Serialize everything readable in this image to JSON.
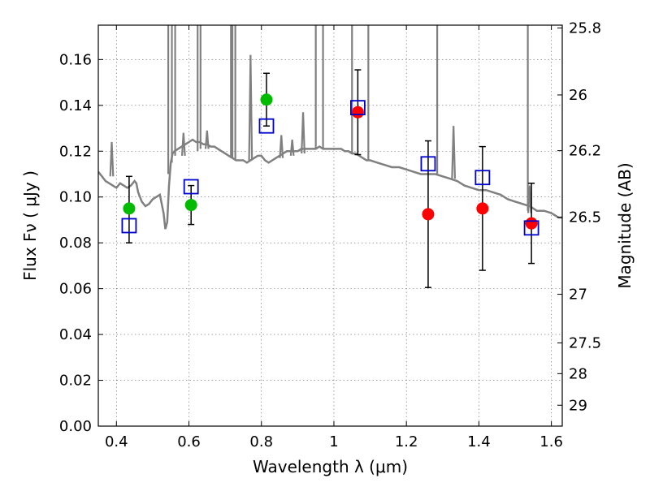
{
  "chart_data": {
    "type": "scatter",
    "title": "",
    "xlabel": "Wavelength  λ (μm)",
    "ylabel": "Flux  Fν  ( μJy )",
    "ylabel_right": "Magnitude (AB)",
    "xlim": [
      0.35,
      1.63
    ],
    "ylim": [
      0.0,
      0.175
    ],
    "grid": true,
    "x_ticks": [
      0.4,
      0.6,
      0.8,
      1.0,
      1.2,
      1.4,
      1.6
    ],
    "x_tick_labels": [
      "0.4",
      "0.6",
      "0.8",
      "1",
      "1.2",
      "1.4",
      "1.6"
    ],
    "y_ticks": [
      0.0,
      0.02,
      0.04,
      0.06,
      0.08,
      0.1,
      0.12,
      0.14,
      0.16
    ],
    "y_tick_labels": [
      "0.00",
      "0.02",
      "0.04",
      "0.06",
      "0.08",
      "0.10",
      "0.12",
      "0.14",
      "0.16"
    ],
    "right_ticks": [
      {
        "label": "25.8",
        "mag": 25.8
      },
      {
        "label": "26",
        "mag": 26.0
      },
      {
        "label": "26.2",
        "mag": 26.2
      },
      {
        "label": "26.5",
        "mag": 26.5
      },
      {
        "label": "27",
        "mag": 27.0
      },
      {
        "label": "27.5",
        "mag": 27.5
      },
      {
        "label": "28",
        "mag": 28.0
      },
      {
        "label": "29",
        "mag": 29.0
      }
    ],
    "colors": {
      "spectrum": "#808080",
      "green_points": "#00bb00",
      "red_points": "#ff0000",
      "model_squares": "#0000cc",
      "errorbar": "#000000"
    },
    "series": [
      {
        "marker": "circle",
        "color": "#00bb00",
        "points": [
          {
            "x": 0.435,
            "y": 0.095,
            "err_lo": 0.015,
            "err_hi": 0.014
          },
          {
            "x": 0.606,
            "y": 0.0965,
            "err_lo": 0.0085,
            "err_hi": 0.0085
          },
          {
            "x": 0.814,
            "y": 0.1425,
            "err_lo": 0.0115,
            "err_hi": 0.0115
          }
        ]
      },
      {
        "marker": "circle",
        "color": "#ff0000",
        "points": [
          {
            "x": 1.066,
            "y": 0.137,
            "err_lo": 0.0185,
            "err_hi": 0.0185
          },
          {
            "x": 1.26,
            "y": 0.0925,
            "err_lo": 0.032,
            "err_hi": 0.032
          },
          {
            "x": 1.41,
            "y": 0.095,
            "err_lo": 0.027,
            "err_hi": 0.027
          },
          {
            "x": 1.545,
            "y": 0.0885,
            "err_lo": 0.0175,
            "err_hi": 0.0175
          }
        ]
      },
      {
        "marker": "square-open",
        "color": "#0000cc",
        "points": [
          {
            "x": 0.435,
            "y": 0.0875
          },
          {
            "x": 0.606,
            "y": 0.1045
          },
          {
            "x": 0.814,
            "y": 0.131
          },
          {
            "x": 1.066,
            "y": 0.139
          },
          {
            "x": 1.26,
            "y": 0.1145
          },
          {
            "x": 1.41,
            "y": 0.1085
          },
          {
            "x": 1.545,
            "y": 0.0865
          }
        ]
      },
      {
        "type": "line",
        "color": "#808080",
        "x": [
          0.35,
          0.36,
          0.37,
          0.38,
          0.39,
          0.4,
          0.405,
          0.41,
          0.42,
          0.43,
          0.44,
          0.45,
          0.455,
          0.46,
          0.47,
          0.48,
          0.49,
          0.5,
          0.51,
          0.52,
          0.53,
          0.535,
          0.54,
          0.545,
          0.55,
          0.555,
          0.56,
          0.57,
          0.58,
          0.59,
          0.6,
          0.61,
          0.62,
          0.63,
          0.64,
          0.65,
          0.66,
          0.67,
          0.68,
          0.69,
          0.7,
          0.71,
          0.72,
          0.73,
          0.74,
          0.75,
          0.76,
          0.77,
          0.78,
          0.79,
          0.8,
          0.81,
          0.82,
          0.83,
          0.84,
          0.85,
          0.86,
          0.87,
          0.88,
          0.89,
          0.9,
          0.91,
          0.92,
          0.93,
          0.94,
          0.95,
          0.96,
          0.97,
          0.98,
          0.99,
          1.0,
          1.01,
          1.02,
          1.03,
          1.04,
          1.05,
          1.06,
          1.07,
          1.08,
          1.09,
          1.1,
          1.12,
          1.14,
          1.16,
          1.18,
          1.2,
          1.22,
          1.24,
          1.26,
          1.28,
          1.3,
          1.32,
          1.34,
          1.36,
          1.38,
          1.4,
          1.42,
          1.44,
          1.46,
          1.48,
          1.5,
          1.52,
          1.54,
          1.56,
          1.58,
          1.6,
          1.62,
          1.63
        ],
        "y": [
          0.111,
          0.109,
          0.107,
          0.106,
          0.105,
          0.104,
          0.105,
          0.106,
          0.105,
          0.104,
          0.105,
          0.107,
          0.106,
          0.102,
          0.098,
          0.096,
          0.097,
          0.099,
          0.1,
          0.101,
          0.093,
          0.086,
          0.089,
          0.105,
          0.115,
          0.119,
          0.12,
          0.121,
          0.122,
          0.123,
          0.124,
          0.125,
          0.124,
          0.124,
          0.123,
          0.123,
          0.122,
          0.122,
          0.121,
          0.12,
          0.119,
          0.118,
          0.117,
          0.116,
          0.116,
          0.116,
          0.115,
          0.116,
          0.117,
          0.118,
          0.118,
          0.116,
          0.115,
          0.116,
          0.117,
          0.118,
          0.119,
          0.12,
          0.12,
          0.12,
          0.12,
          0.121,
          0.121,
          0.121,
          0.121,
          0.121,
          0.122,
          0.121,
          0.121,
          0.121,
          0.121,
          0.121,
          0.121,
          0.12,
          0.12,
          0.119,
          0.119,
          0.118,
          0.117,
          0.116,
          0.116,
          0.115,
          0.114,
          0.113,
          0.113,
          0.112,
          0.111,
          0.11,
          0.11,
          0.11,
          0.109,
          0.108,
          0.107,
          0.105,
          0.104,
          0.103,
          0.103,
          0.102,
          0.101,
          0.099,
          0.098,
          0.097,
          0.096,
          0.094,
          0.094,
          0.093,
          0.091,
          0.091
        ]
      }
    ]
  }
}
